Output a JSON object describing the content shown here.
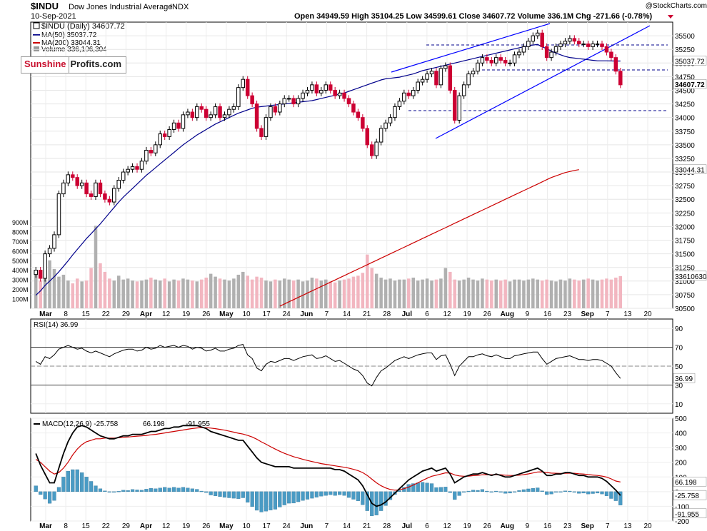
{
  "header": {
    "symbol": "$INDU",
    "name": "Dow Jones Industrial Average",
    "exchange": "INDX",
    "date": "10-Sep-2021",
    "quote": "Open 34949.59  High 35104.25  Low 34599.61  Close 34607.72  Volume 336.1M  Chg -271.66 (-0.78%)",
    "watermark": "@StockCharts.com"
  },
  "legend": {
    "price": "$INDU (Daily) 34607.72",
    "ma50": "MA(50) 35037.72",
    "ma200": "MA(200) 33044.31",
    "volume": "Volume 336,106,304"
  },
  "logo": {
    "part1": "Sunshine",
    "part2": "Profits.com"
  },
  "colors": {
    "up": "#000000",
    "down": "#cc0033",
    "ma50": "#00008b",
    "ma200": "#cc0000",
    "trend": "#0000ff",
    "volume_up": "#b0b0b0",
    "volume_down": "#f2b6c0",
    "rsi": "#000000",
    "signal": "#cc0000",
    "histogram": "#4a9bc4"
  },
  "chart_data": [
    {
      "type": "candlestick",
      "title": "$INDU (Daily)",
      "ylim": [
        30500,
        35750
      ],
      "y_ticks": [
        "35500",
        "35250",
        "35000",
        "34750",
        "34500",
        "34250",
        "34000",
        "33750",
        "33500",
        "33250",
        "33000",
        "32750",
        "32500",
        "32250",
        "32000",
        "31750",
        "31500",
        "31250",
        "31000",
        "30750",
        "30500"
      ],
      "x_ticks": [
        "Mar",
        "8",
        "15",
        "22",
        "29",
        "Apr",
        "12",
        "19",
        "26",
        "May",
        "10",
        "17",
        "24",
        "Jun",
        "7",
        "14",
        "21",
        "28",
        "Jul",
        "6",
        "12",
        "19",
        "26",
        "Aug",
        "9",
        "16",
        "23",
        "Sep",
        "7",
        "13",
        "20"
      ],
      "close": [
        31200,
        31050,
        31500,
        31600,
        31850,
        32600,
        32800,
        32950,
        32900,
        32750,
        32800,
        32600,
        32550,
        32800,
        32600,
        32500,
        32450,
        32700,
        32850,
        33000,
        33050,
        33100,
        33050,
        33200,
        33400,
        33350,
        33500,
        33700,
        33650,
        33780,
        33900,
        33800,
        34050,
        34100,
        34000,
        34200,
        34150,
        34000,
        34050,
        34200,
        34000,
        34050,
        34150,
        34200,
        34550,
        34700,
        34400,
        34250,
        33800,
        33650,
        34000,
        34200,
        34100,
        34250,
        34350,
        34350,
        34250,
        34350,
        34450,
        34500,
        34600,
        34450,
        34500,
        34600,
        34500,
        34400,
        34450,
        34350,
        34250,
        34100,
        34000,
        33800,
        33500,
        33300,
        33550,
        33800,
        33900,
        34000,
        34200,
        34300,
        34450,
        34400,
        34500,
        34650,
        34700,
        34800,
        34850,
        34600,
        34900,
        34950,
        34500,
        33950,
        34400,
        34600,
        34800,
        34850,
        35000,
        35100,
        35050,
        35000,
        35100,
        35050,
        35000,
        35000,
        35150,
        35200,
        35300,
        35400,
        35500,
        35550,
        35300,
        35100,
        35200,
        35300,
        35350,
        35400,
        35450,
        35400,
        35350,
        35350,
        35300,
        35350,
        35350,
        35300,
        35200,
        35100,
        34850,
        34600
      ],
      "ma50": [
        30740,
        30820,
        30920,
        31000,
        31080,
        31170,
        31270,
        31370,
        31480,
        31580,
        31680,
        31780,
        31870,
        31960,
        32050,
        32150,
        32250,
        32350,
        32450,
        32540,
        32620,
        32700,
        32780,
        32860,
        32940,
        33010,
        33080,
        33150,
        33220,
        33290,
        33360,
        33430,
        33500,
        33560,
        33620,
        33680,
        33730,
        33780,
        33830,
        33880,
        33920,
        33960,
        34000,
        34040,
        34080,
        34110,
        34140,
        34170,
        34190,
        34200,
        34210,
        34220,
        34230,
        34240,
        34250,
        34260,
        34270,
        34280,
        34290,
        34300,
        34310,
        34330,
        34350,
        34370,
        34390,
        34410,
        34430,
        34450,
        34480,
        34510,
        34540,
        34570,
        34600,
        34630,
        34660,
        34690,
        34710,
        34720,
        34730,
        34740,
        34760,
        34780,
        34800,
        34830,
        34860,
        34880,
        34900,
        34920,
        34940,
        34960,
        34980,
        35000,
        35020,
        35040,
        35060,
        35080,
        35100,
        35120,
        35140,
        35160,
        35180,
        35200,
        35220,
        35240,
        35260,
        35280,
        35300,
        35320,
        35330,
        35340,
        35300,
        35260,
        35220,
        35180,
        35150,
        35120,
        35100,
        35090,
        35080,
        35070,
        35060,
        35050,
        35040,
        35040,
        35040,
        35038,
        35037,
        35037
      ],
      "ma200": [
        null,
        null,
        null,
        null,
        null,
        null,
        null,
        null,
        null,
        null,
        null,
        null,
        null,
        null,
        null,
        null,
        null,
        null,
        null,
        null,
        null,
        null,
        null,
        null,
        null,
        null,
        null,
        null,
        null,
        null,
        null,
        null,
        null,
        null,
        null,
        null,
        null,
        null,
        null,
        null,
        null,
        null,
        null,
        null,
        null,
        null,
        null,
        null,
        null,
        null,
        null,
        null,
        null,
        30540,
        30580,
        30620,
        30660,
        30700,
        30740,
        30780,
        30820,
        30860,
        30900,
        30940,
        30980,
        31020,
        31060,
        31100,
        31140,
        31180,
        31220,
        31260,
        31300,
        31340,
        31380,
        31420,
        31460,
        31500,
        31540,
        31580,
        31620,
        31660,
        31700,
        31740,
        31780,
        31820,
        31860,
        31900,
        31940,
        31980,
        32020,
        32060,
        32100,
        32140,
        32180,
        32220,
        32260,
        32300,
        32340,
        32380,
        32420,
        32460,
        32500,
        32540,
        32580,
        32620,
        32660,
        32700,
        32740,
        32780,
        32820,
        32860,
        32900,
        32930,
        32960,
        32990,
        33010,
        33030,
        33044
      ],
      "volume_m": [
        390,
        290,
        380,
        500,
        410,
        330,
        350,
        290,
        260,
        310,
        280,
        290,
        420,
        860,
        470,
        380,
        310,
        290,
        340,
        300,
        310,
        290,
        280,
        290,
        300,
        320,
        300,
        290,
        310,
        280,
        300,
        290,
        310,
        300,
        290,
        280,
        300,
        320,
        360,
        330,
        310,
        300,
        290,
        310,
        350,
        380,
        340,
        300,
        330,
        320,
        290,
        280,
        300,
        290,
        310,
        300,
        290,
        300,
        280,
        290,
        320,
        310,
        290,
        300,
        280,
        270,
        290,
        300,
        310,
        330,
        340,
        370,
        560,
        420,
        360,
        320,
        300,
        310,
        290,
        300,
        300,
        310,
        320,
        290,
        300,
        310,
        290,
        300,
        310,
        420,
        380,
        300,
        290,
        300,
        320,
        300,
        290,
        310,
        300,
        290,
        300,
        290,
        300,
        280,
        300,
        300,
        290,
        300,
        310,
        300,
        290,
        300,
        290,
        280,
        300,
        290,
        310,
        300,
        290,
        300,
        310,
        300,
        290,
        300,
        310,
        300,
        320,
        336
      ],
      "volume_ylim": [
        0,
        900
      ],
      "volume_ticks": [
        "900M",
        "800M",
        "700M",
        "600M",
        "500M",
        "400M",
        "300M",
        "200M",
        "100M"
      ],
      "last_labels": {
        "close": "34607.72",
        "ma50": "35037.72",
        "ma200": "33044.31",
        "volume": "336106304"
      }
    },
    {
      "type": "line",
      "title": "RSI(14) 36.99",
      "ylim": [
        0,
        100
      ],
      "y_ticks": [
        "90",
        "70",
        "50",
        "30",
        "10"
      ],
      "last_label": "36.99",
      "values": [
        55,
        52,
        60,
        58,
        62,
        68,
        70,
        72,
        70,
        68,
        69,
        66,
        64,
        66,
        64,
        62,
        60,
        63,
        65,
        67,
        68,
        68,
        66,
        67,
        70,
        68,
        69,
        72,
        70,
        71,
        72,
        70,
        72,
        71,
        68,
        70,
        69,
        66,
        67,
        69,
        66,
        66,
        68,
        69,
        72,
        73,
        62,
        58,
        48,
        45,
        52,
        55,
        54,
        56,
        58,
        58,
        56,
        58,
        60,
        61,
        62,
        58,
        59,
        61,
        58,
        55,
        56,
        53,
        50,
        47,
        45,
        40,
        32,
        29,
        38,
        45,
        48,
        52,
        56,
        58,
        60,
        58,
        60,
        62,
        63,
        64,
        64,
        57,
        61,
        62,
        52,
        40,
        50,
        55,
        60,
        60,
        62,
        63,
        61,
        60,
        62,
        60,
        58,
        58,
        61,
        62,
        63,
        64,
        65,
        65,
        58,
        52,
        55,
        58,
        59,
        60,
        61,
        59,
        57,
        57,
        56,
        57,
        57,
        56,
        53,
        50,
        43,
        37
      ]
    },
    {
      "type": "line",
      "title": "MACD(12,26,9) -25.758, 66.198, -91.955",
      "ylim": [
        -200,
        500
      ],
      "y_ticks": [
        "500",
        "400",
        "300",
        "200",
        "100",
        "0",
        "-100",
        "-200"
      ],
      "series": [
        {
          "name": "MACD(12,26,9) -25.758",
          "values": [
            260,
            180,
            120,
            60,
            60,
            160,
            260,
            340,
            400,
            440,
            450,
            440,
            420,
            400,
            380,
            370,
            360,
            360,
            370,
            380,
            380,
            390,
            390,
            390,
            400,
            410,
            410,
            420,
            430,
            430,
            440,
            440,
            450,
            450,
            450,
            450,
            440,
            430,
            410,
            400,
            390,
            380,
            370,
            360,
            350,
            350,
            310,
            270,
            230,
            200,
            190,
            180,
            170,
            170,
            170,
            170,
            160,
            160,
            160,
            160,
            160,
            160,
            160,
            160,
            160,
            150,
            150,
            140,
            120,
            100,
            80,
            40,
            -20,
            -80,
            -100,
            -90,
            -70,
            -40,
            -10,
            20,
            50,
            80,
            100,
            120,
            140,
            150,
            160,
            140,
            150,
            160,
            120,
            60,
            80,
            100,
            110,
            120,
            120,
            130,
            120,
            110,
            120,
            110,
            100,
            100,
            110,
            120,
            130,
            140,
            150,
            160,
            140,
            110,
            110,
            120,
            120,
            130,
            130,
            120,
            110,
            110,
            100,
            100,
            100,
            90,
            70,
            40,
            10,
            -26
          ]
        },
        {
          "name": "66.198",
          "values": [
            220,
            200,
            170,
            140,
            120,
            130,
            160,
            200,
            250,
            290,
            320,
            340,
            350,
            360,
            360,
            365,
            365,
            365,
            367,
            370,
            372,
            375,
            378,
            380,
            383,
            387,
            390,
            395,
            400,
            405,
            410,
            415,
            420,
            425,
            430,
            434,
            436,
            436,
            433,
            429,
            424,
            419,
            412,
            405,
            398,
            392,
            383,
            372,
            357,
            339,
            323,
            306,
            290,
            275,
            261,
            249,
            238,
            229,
            220,
            212,
            205,
            198,
            191,
            186,
            181,
            176,
            171,
            166,
            160,
            152,
            143,
            130,
            110,
            85,
            60,
            40,
            25,
            15,
            10,
            13,
            20,
            31,
            45,
            60,
            76,
            91,
            105,
            112,
            120,
            128,
            127,
            114,
            107,
            105,
            106,
            109,
            111,
            115,
            116,
            115,
            116,
            115,
            112,
            110,
            110,
            112,
            116,
            121,
            127,
            134,
            135,
            130,
            126,
            125,
            124,
            125,
            126,
            125,
            122,
            120,
            116,
            113,
            110,
            106,
            99,
            87,
            72,
            66
          ]
        }
      ],
      "histogram": [
        40,
        -20,
        -50,
        -80,
        -60,
        30,
        100,
        140,
        150,
        150,
        130,
        100,
        70,
        40,
        20,
        5,
        -5,
        -5,
        3,
        10,
        8,
        15,
        12,
        10,
        17,
        23,
        20,
        25,
        30,
        25,
        30,
        25,
        30,
        25,
        20,
        16,
        4,
        -6,
        -23,
        -29,
        -34,
        -39,
        -42,
        -45,
        -48,
        -42,
        -73,
        -102,
        -127,
        -139,
        -133,
        -126,
        -120,
        -105,
        -91,
        -79,
        -78,
        -69,
        -60,
        -52,
        -45,
        -38,
        -31,
        -26,
        -21,
        -26,
        -21,
        -26,
        -40,
        -52,
        -63,
        -90,
        -130,
        -165,
        -160,
        -130,
        -95,
        -55,
        -20,
        7,
        30,
        49,
        55,
        60,
        64,
        59,
        55,
        28,
        30,
        32,
        -7,
        -54,
        -27,
        -5,
        4,
        11,
        9,
        15,
        4,
        -5,
        4,
        -5,
        -12,
        -10,
        0,
        8,
        14,
        19,
        23,
        26,
        5,
        -20,
        -16,
        -5,
        -4,
        5,
        4,
        -5,
        -12,
        -10,
        -16,
        -13,
        -10,
        -16,
        -29,
        -47,
        -62,
        -92
      ]
    }
  ]
}
